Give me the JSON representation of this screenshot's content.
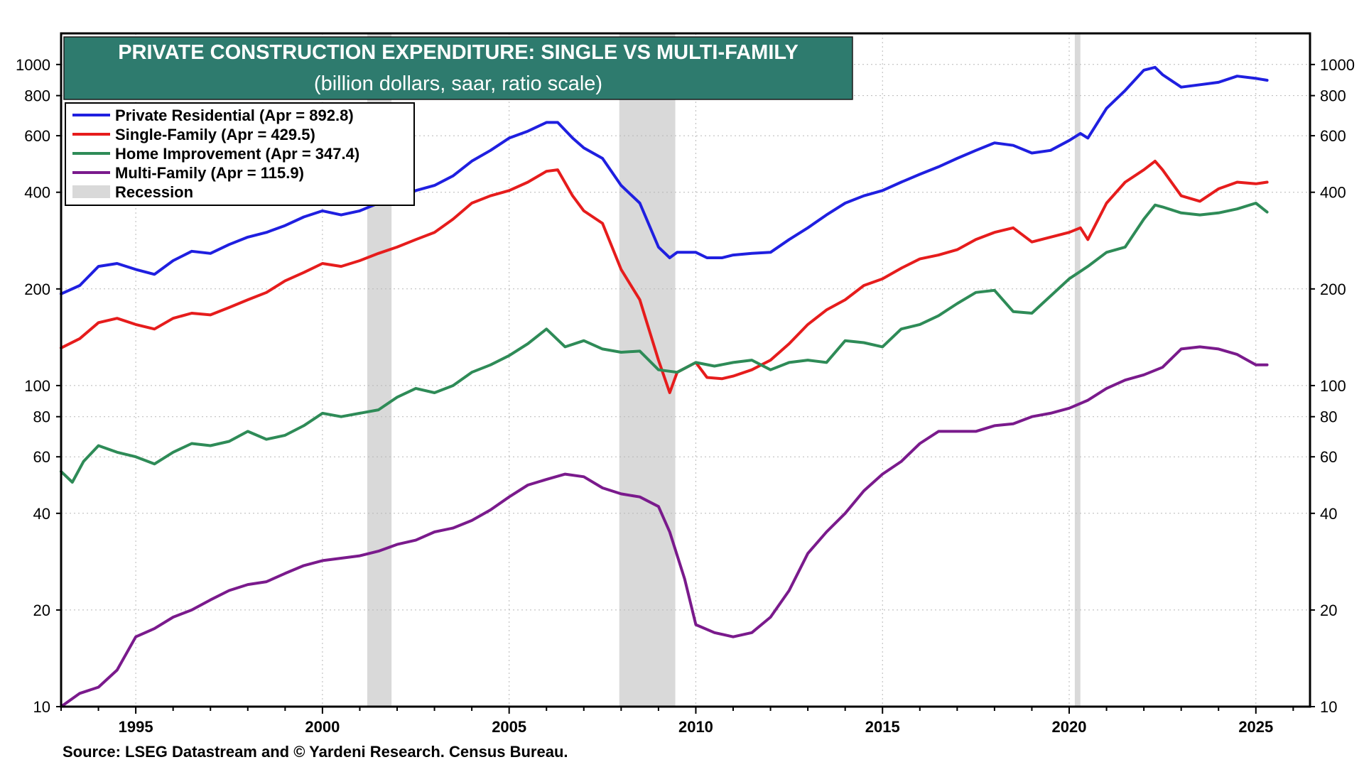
{
  "chart_data": {
    "type": "line",
    "title": "PRIVATE CONSTRUCTION EXPENDITURE: SINGLE VS MULTI-FAMILY",
    "subtitle": "(billion dollars, saar, ratio scale)",
    "source": "Source: LSEG Datastream and © Yardeni Research. Census Bureau.",
    "yscale": "log",
    "ylim": [
      10,
      1250
    ],
    "xlim": [
      1993.0,
      2026.45
    ],
    "y_ticks": [
      10,
      20,
      40,
      60,
      80,
      100,
      200,
      400,
      600,
      800,
      1000
    ],
    "y_tick_labels": [
      "10",
      "20",
      "40",
      "60",
      "80",
      "100",
      "200",
      "400",
      "600",
      "800",
      "1000"
    ],
    "x_ticks": [
      1995,
      2000,
      2005,
      2010,
      2015,
      2020,
      2025
    ],
    "x_tick_labels": [
      "1995",
      "2000",
      "2005",
      "2010",
      "2015",
      "2020",
      "2025"
    ],
    "grid": "dotted",
    "legend_position": "top-left",
    "recessions": [
      {
        "start": 2001.2,
        "end": 2001.85
      },
      {
        "start": 2007.95,
        "end": 2009.45
      },
      {
        "start": 2020.15,
        "end": 2020.3
      }
    ],
    "series": [
      {
        "name": "Private Residential (Apr = 892.8)",
        "color": "#1f1fe0",
        "x": [
          1993.0,
          1993.5,
          1994.0,
          1994.5,
          1995.0,
          1995.5,
          1996.0,
          1996.5,
          1997.0,
          1997.5,
          1998.0,
          1998.5,
          1999.0,
          1999.5,
          2000.0,
          2000.5,
          2001.0,
          2001.5,
          2002.0,
          2002.5,
          2003.0,
          2003.5,
          2004.0,
          2004.5,
          2005.0,
          2005.5,
          2006.0,
          2006.3,
          2006.7,
          2007.0,
          2007.5,
          2008.0,
          2008.5,
          2009.0,
          2009.3,
          2009.5,
          2010.0,
          2010.3,
          2010.7,
          2011.0,
          2011.5,
          2012.0,
          2012.5,
          2013.0,
          2013.5,
          2014.0,
          2014.5,
          2015.0,
          2015.5,
          2016.0,
          2016.5,
          2017.0,
          2017.5,
          2018.0,
          2018.5,
          2019.0,
          2019.5,
          2020.0,
          2020.3,
          2020.5,
          2021.0,
          2021.5,
          2022.0,
          2022.3,
          2022.5,
          2023.0,
          2023.5,
          2024.0,
          2024.5,
          2025.0,
          2025.3
        ],
        "values": [
          193,
          205,
          235,
          240,
          230,
          222,
          245,
          262,
          258,
          275,
          290,
          300,
          315,
          335,
          350,
          340,
          350,
          370,
          385,
          405,
          420,
          450,
          500,
          540,
          590,
          620,
          660,
          660,
          590,
          550,
          510,
          420,
          370,
          270,
          250,
          260,
          260,
          250,
          250,
          255,
          258,
          260,
          285,
          310,
          340,
          370,
          390,
          405,
          430,
          455,
          480,
          510,
          540,
          570,
          560,
          530,
          540,
          580,
          610,
          590,
          730,
          830,
          960,
          980,
          930,
          850,
          865,
          880,
          920,
          905,
          893
        ]
      },
      {
        "name": "Single-Family (Apr = 429.5)",
        "color": "#e61c1c",
        "x": [
          1993.0,
          1993.5,
          1994.0,
          1994.5,
          1995.0,
          1995.5,
          1996.0,
          1996.5,
          1997.0,
          1997.5,
          1998.0,
          1998.5,
          1999.0,
          1999.5,
          2000.0,
          2000.5,
          2001.0,
          2001.5,
          2002.0,
          2002.5,
          2003.0,
          2003.5,
          2004.0,
          2004.5,
          2005.0,
          2005.5,
          2006.0,
          2006.3,
          2006.7,
          2007.0,
          2007.5,
          2008.0,
          2008.5,
          2009.0,
          2009.3,
          2009.5,
          2010.0,
          2010.3,
          2010.7,
          2011.0,
          2011.5,
          2012.0,
          2012.5,
          2013.0,
          2013.5,
          2014.0,
          2014.5,
          2015.0,
          2015.5,
          2016.0,
          2016.5,
          2017.0,
          2017.5,
          2018.0,
          2018.5,
          2019.0,
          2019.5,
          2020.0,
          2020.3,
          2020.5,
          2021.0,
          2021.5,
          2022.0,
          2022.3,
          2022.5,
          2023.0,
          2023.5,
          2024.0,
          2024.5,
          2025.0,
          2025.3
        ],
        "values": [
          131,
          140,
          157,
          162,
          155,
          150,
          162,
          168,
          166,
          175,
          185,
          195,
          212,
          225,
          240,
          235,
          245,
          258,
          270,
          285,
          300,
          330,
          370,
          390,
          405,
          430,
          465,
          470,
          390,
          350,
          320,
          230,
          185,
          120,
          95,
          110,
          118,
          106,
          105,
          107,
          112,
          120,
          135,
          155,
          172,
          185,
          205,
          215,
          232,
          248,
          255,
          265,
          285,
          300,
          310,
          280,
          290,
          300,
          310,
          285,
          370,
          430,
          470,
          500,
          470,
          390,
          375,
          410,
          430,
          425,
          430
        ]
      },
      {
        "name": "Home Improvement (Apr = 347.4)",
        "color": "#2e8b57",
        "x": [
          1993.0,
          1993.3,
          1993.6,
          1994.0,
          1994.5,
          1995.0,
          1995.5,
          1996.0,
          1996.5,
          1997.0,
          1997.5,
          1998.0,
          1998.5,
          1999.0,
          1999.5,
          2000.0,
          2000.5,
          2001.0,
          2001.5,
          2002.0,
          2002.5,
          2003.0,
          2003.5,
          2004.0,
          2004.5,
          2005.0,
          2005.5,
          2006.0,
          2006.5,
          2007.0,
          2007.5,
          2008.0,
          2008.5,
          2009.0,
          2009.5,
          2010.0,
          2010.5,
          2011.0,
          2011.5,
          2012.0,
          2012.5,
          2013.0,
          2013.5,
          2014.0,
          2014.5,
          2015.0,
          2015.5,
          2016.0,
          2016.5,
          2017.0,
          2017.5,
          2018.0,
          2018.5,
          2019.0,
          2019.5,
          2020.0,
          2020.5,
          2021.0,
          2021.5,
          2022.0,
          2022.3,
          2022.5,
          2023.0,
          2023.5,
          2024.0,
          2024.5,
          2025.0,
          2025.3
        ],
        "values": [
          54,
          50,
          58,
          65,
          62,
          60,
          57,
          62,
          66,
          65,
          67,
          72,
          68,
          70,
          75,
          82,
          80,
          82,
          84,
          92,
          98,
          95,
          100,
          110,
          116,
          124,
          135,
          150,
          132,
          138,
          130,
          127,
          128,
          112,
          110,
          118,
          115,
          118,
          120,
          112,
          118,
          120,
          118,
          138,
          136,
          132,
          150,
          155,
          165,
          180,
          195,
          198,
          170,
          168,
          190,
          215,
          235,
          260,
          270,
          330,
          365,
          360,
          345,
          340,
          345,
          355,
          370,
          347
        ]
      },
      {
        "name": "Multi-Family (Apr = 115.9)",
        "color": "#7a1a8c",
        "x": [
          1993.0,
          1993.5,
          1994.0,
          1994.5,
          1995.0,
          1995.5,
          1996.0,
          1996.5,
          1997.0,
          1997.5,
          1998.0,
          1998.5,
          1999.0,
          1999.5,
          2000.0,
          2000.5,
          2001.0,
          2001.5,
          2002.0,
          2002.5,
          2003.0,
          2003.5,
          2004.0,
          2004.5,
          2005.0,
          2005.5,
          2006.0,
          2006.5,
          2007.0,
          2007.5,
          2008.0,
          2008.5,
          2009.0,
          2009.3,
          2009.7,
          2010.0,
          2010.5,
          2011.0,
          2011.5,
          2012.0,
          2012.5,
          2013.0,
          2013.5,
          2014.0,
          2014.5,
          2015.0,
          2015.5,
          2016.0,
          2016.5,
          2017.0,
          2017.5,
          2018.0,
          2018.5,
          2019.0,
          2019.5,
          2020.0,
          2020.5,
          2021.0,
          2021.5,
          2022.0,
          2022.5,
          2023.0,
          2023.5,
          2024.0,
          2024.5,
          2025.0,
          2025.3
        ],
        "values": [
          10,
          11,
          11.5,
          13,
          16.5,
          17.5,
          19,
          20,
          21.5,
          23,
          24,
          24.5,
          26,
          27.5,
          28.5,
          29,
          29.5,
          30.5,
          32,
          33,
          35,
          36,
          38,
          41,
          45,
          49,
          51,
          53,
          52,
          48,
          46,
          45,
          42,
          35,
          25,
          18,
          17,
          16.5,
          17,
          19,
          23,
          30,
          35,
          40,
          47,
          53,
          58,
          66,
          72,
          72,
          72,
          75,
          76,
          80,
          82,
          85,
          90,
          98,
          104,
          108,
          114,
          130,
          132,
          130,
          125,
          116,
          116
        ]
      }
    ],
    "legend_items": [
      "Private Residential (Apr = 892.8)",
      "Single-Family (Apr = 429.5)",
      "Home Improvement (Apr = 347.4)",
      "Multi-Family (Apr = 115.9)",
      "Recession"
    ],
    "colors": {
      "title_bg": "#2e7b6e",
      "recession": "#d9d9d9",
      "grid": "#b8b8b8"
    }
  }
}
